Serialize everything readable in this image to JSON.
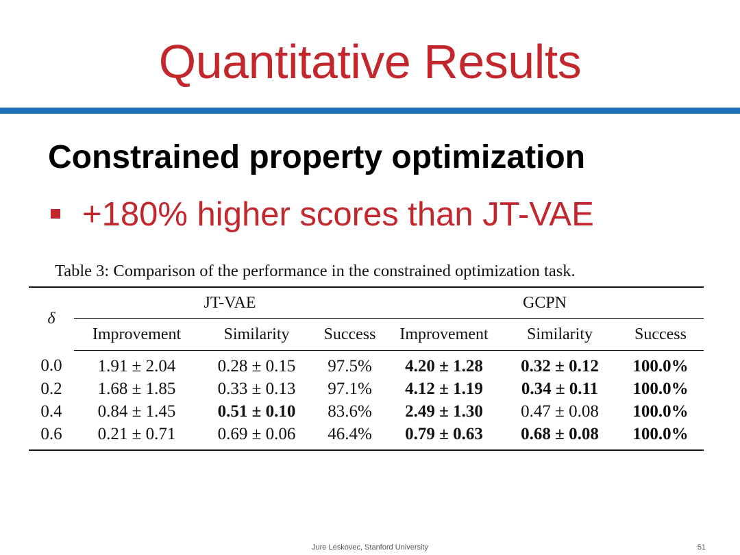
{
  "slide": {
    "title": "Quantitative Results",
    "heading": "Constrained property optimization",
    "bullet": "+180% higher scores than JT-VAE",
    "caption": "Table 3: Comparison of the performance in the constrained optimization task.",
    "footer": "Jure Leskovec, Stanford University",
    "page_number": "51",
    "colors": {
      "title": "#c1272d",
      "rule": "#1f6fb8",
      "bullet": "#c1272d"
    }
  },
  "table": {
    "delta_label": "δ",
    "groups": [
      "JT-VAE",
      "GCPN"
    ],
    "columns": [
      "Improvement",
      "Similarity",
      "Success",
      "Improvement",
      "Similarity",
      "Success"
    ],
    "rows": [
      {
        "delta": "0.0",
        "cells": [
          {
            "text": "1.91 ± 2.04",
            "bold": false
          },
          {
            "text": "0.28 ± 0.15",
            "bold": false
          },
          {
            "text": "97.5%",
            "bold": false
          },
          {
            "text": "4.20 ± 1.28",
            "bold": true
          },
          {
            "text": "0.32 ± 0.12",
            "bold": true
          },
          {
            "text": "100.0%",
            "bold": true
          }
        ]
      },
      {
        "delta": "0.2",
        "cells": [
          {
            "text": "1.68 ± 1.85",
            "bold": false
          },
          {
            "text": "0.33 ± 0.13",
            "bold": false
          },
          {
            "text": "97.1%",
            "bold": false
          },
          {
            "text": "4.12 ± 1.19",
            "bold": true
          },
          {
            "text": "0.34 ± 0.11",
            "bold": true
          },
          {
            "text": "100.0%",
            "bold": true
          }
        ]
      },
      {
        "delta": "0.4",
        "cells": [
          {
            "text": "0.84 ± 1.45",
            "bold": false
          },
          {
            "text": "0.51 ± 0.10",
            "bold": true
          },
          {
            "text": "83.6%",
            "bold": false
          },
          {
            "text": "2.49 ± 1.30",
            "bold": true
          },
          {
            "text": "0.47 ± 0.08",
            "bold": false
          },
          {
            "text": "100.0%",
            "bold": true
          }
        ]
      },
      {
        "delta": "0.6",
        "cells": [
          {
            "text": "0.21 ± 0.71",
            "bold": false
          },
          {
            "text": "0.69 ± 0.06",
            "bold": false
          },
          {
            "text": "46.4%",
            "bold": false
          },
          {
            "text": "0.79 ± 0.63",
            "bold": true
          },
          {
            "text": "0.68 ± 0.08",
            "bold": true
          },
          {
            "text": "100.0%",
            "bold": true
          }
        ]
      }
    ]
  }
}
